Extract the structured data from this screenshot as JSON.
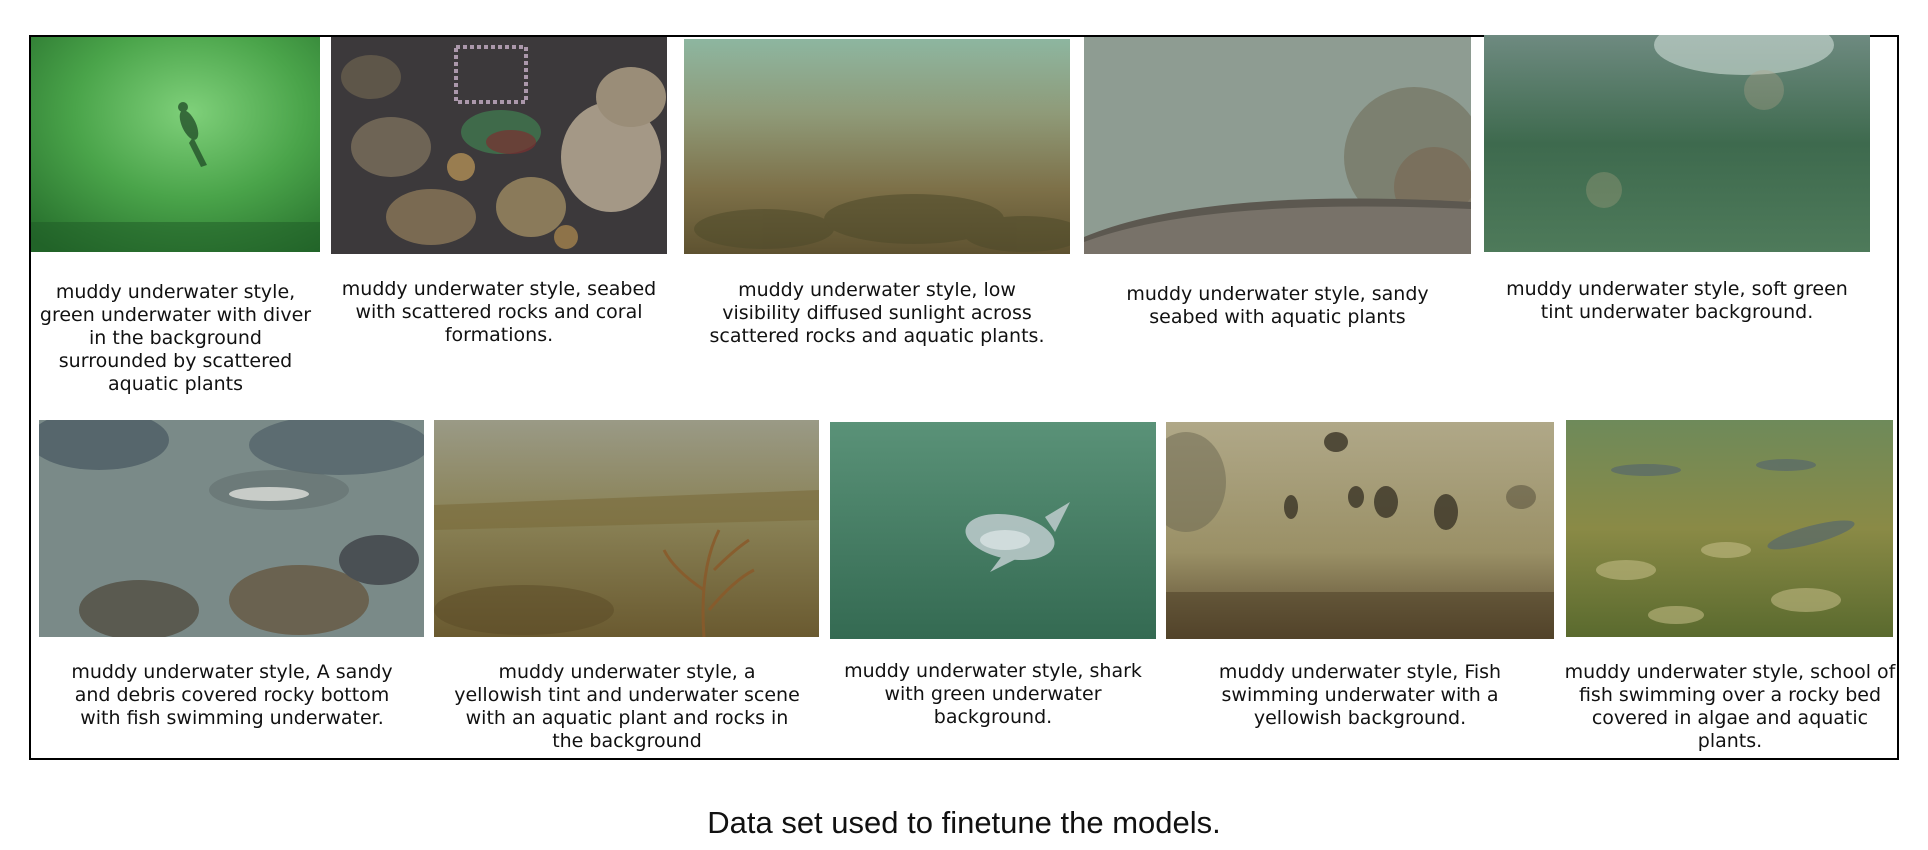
{
  "figure": {
    "caption": "Data set used to finetune the models."
  },
  "samples": [
    {
      "caption": "muddy underwater style, green underwater with diver in the background surrounded by scattered aquatic plants"
    },
    {
      "caption": "muddy underwater style, seabed with scattered rocks and coral formations."
    },
    {
      "caption": "muddy underwater style, low visibility diffused sunlight across scattered rocks and aquatic plants."
    },
    {
      "caption": "muddy underwater style, sandy seabed with aquatic plants"
    },
    {
      "caption": "muddy underwater style, soft green tint underwater background."
    },
    {
      "caption": "muddy underwater style, A sandy and debris covered rocky bottom with fish swimming underwater."
    },
    {
      "caption": "muddy underwater style, a yellowish tint and underwater scene with an aquatic plant and rocks in the background"
    },
    {
      "caption": "muddy underwater style, shark with green underwater background."
    },
    {
      "caption": "muddy underwater style, Fish swimming underwater with a yellowish background."
    },
    {
      "caption": "muddy underwater style, school of fish swimming over a rocky bed covered in algae and aquatic plants."
    }
  ]
}
